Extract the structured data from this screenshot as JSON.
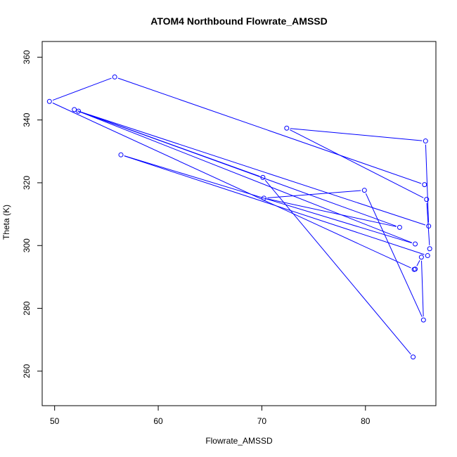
{
  "chart_data": {
    "type": "line",
    "title": "ATOM4 Northbound Flowrate_AMSSD",
    "xlabel": "Flowrate_AMSSD",
    "ylabel": "Theta (K)",
    "xlim": [
      48.8,
      86.8
    ],
    "ylim": [
      249,
      365
    ],
    "xticks": [
      50,
      60,
      70,
      80
    ],
    "yticks": [
      260,
      280,
      300,
      320,
      340,
      360
    ],
    "grid": false,
    "markers": "open-circle",
    "line_color": "#0000ff",
    "series": [
      {
        "points": [
          [
            84.6,
            264.5
          ],
          [
            70.1,
            321.7
          ],
          [
            51.9,
            343.3
          ],
          [
            84.8,
            300.5
          ],
          [
            56.4,
            328.9
          ],
          [
            86.0,
            296.8
          ],
          [
            86.2,
            299.0
          ],
          [
            85.9,
            314.7
          ],
          [
            72.4,
            337.4
          ],
          [
            85.8,
            333.3
          ],
          [
            86.1,
            306.2
          ],
          [
            52.3,
            342.8
          ],
          [
            83.3,
            305.8
          ],
          [
            70.2,
            315.1
          ],
          [
            79.9,
            317.6
          ],
          [
            85.6,
            276.3
          ],
          [
            85.4,
            296.3
          ],
          [
            84.8,
            292.5
          ],
          [
            84.7,
            292.4
          ],
          [
            49.5,
            345.9
          ],
          [
            55.8,
            353.7
          ],
          [
            85.7,
            319.4
          ]
        ]
      }
    ]
  }
}
